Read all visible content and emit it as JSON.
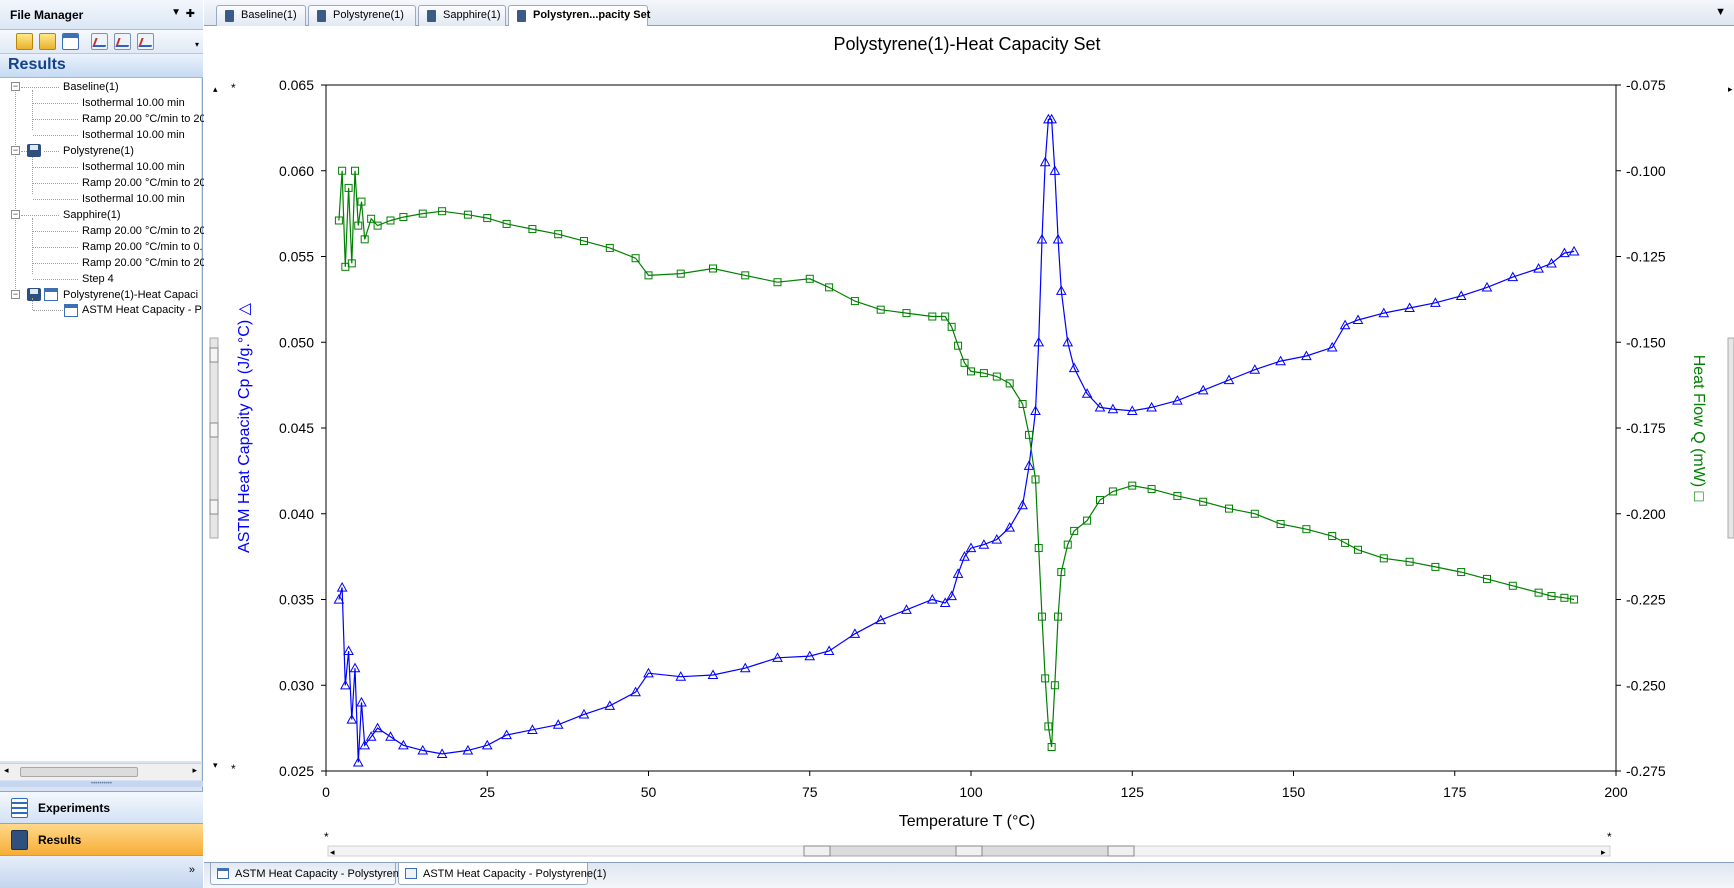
{
  "file_manager": {
    "title": "File Manager",
    "results_header": "Results",
    "tree": [
      {
        "label": "Baseline(1)",
        "children": [
          "Isothermal 10.00 min",
          "Ramp 20.00 °C/min to 20",
          "Isothermal 10.00 min"
        ]
      },
      {
        "label": "Polystyrene(1)",
        "children": [
          "Isothermal 10.00 min",
          "Ramp 20.00 °C/min to 20",
          "Isothermal 10.00 min"
        ]
      },
      {
        "label": "Sapphire(1)",
        "children": [
          "Ramp 20.00 °C/min to 20",
          "Ramp 20.00 °C/min to 0.",
          "Ramp 20.00 °C/min to 20",
          "Step 4"
        ]
      },
      {
        "label": "Polystyrene(1)-Heat Capaci",
        "children": [
          "ASTM Heat Capacity - P"
        ]
      }
    ],
    "nav": {
      "experiments": "Experiments",
      "results": "Results"
    }
  },
  "tabs": [
    "Baseline(1)",
    "Polystyrene(1)",
    "Sapphire(1)",
    "Polystyren...pacity Set"
  ],
  "bottom_tabs": [
    "ASTM Heat Capacity - Polystyrene(1)",
    "ASTM Heat Capacity - Polystyrene(1)"
  ],
  "chart_data": {
    "type": "line",
    "title": "Polystyrene(1)-Heat Capacity Set",
    "xlabel": "Temperature  T (°C)",
    "ylabel": "ASTM Heat Capacity  Cp (J/g.°C) △",
    "y2label": "Heat Flow  Q (mW) □",
    "xlim": [
      0,
      200
    ],
    "ylim": [
      0.025,
      0.065
    ],
    "y2lim": [
      -0.275,
      -0.075
    ],
    "x_ticks": [
      "0",
      "25",
      "50",
      "75",
      "100",
      "125",
      "150",
      "175",
      "200"
    ],
    "y_ticks": [
      "0.025",
      "0.030",
      "0.035",
      "0.040",
      "0.045",
      "0.050",
      "0.055",
      "0.060",
      "0.065"
    ],
    "y2_ticks": [
      "-0.275",
      "-0.250",
      "-0.225",
      "-0.200",
      "-0.175",
      "-0.150",
      "-0.125",
      "-0.100",
      "-0.075"
    ],
    "grid": false,
    "series": [
      {
        "color": "#0000ff",
        "marker": "triangle",
        "axis": "left",
        "points": [
          [
            2,
            0.035
          ],
          [
            2.5,
            0.0357
          ],
          [
            3,
            0.03
          ],
          [
            3.5,
            0.032
          ],
          [
            4,
            0.028
          ],
          [
            4.5,
            0.031
          ],
          [
            5,
            0.0255
          ],
          [
            5.5,
            0.029
          ],
          [
            6,
            0.0265
          ],
          [
            7,
            0.027
          ],
          [
            8,
            0.0275
          ],
          [
            10,
            0.027
          ],
          [
            12,
            0.0265
          ],
          [
            15,
            0.0262
          ],
          [
            18,
            0.026
          ],
          [
            22,
            0.0262
          ],
          [
            25,
            0.0265
          ],
          [
            28,
            0.0271
          ],
          [
            32,
            0.0274
          ],
          [
            36,
            0.0277
          ],
          [
            40,
            0.0283
          ],
          [
            44,
            0.0288
          ],
          [
            48,
            0.0296
          ],
          [
            50,
            0.0307
          ],
          [
            55,
            0.0305
          ],
          [
            60,
            0.0306
          ],
          [
            65,
            0.031
          ],
          [
            70,
            0.0316
          ],
          [
            75,
            0.0317
          ],
          [
            78,
            0.032
          ],
          [
            82,
            0.033
          ],
          [
            86,
            0.0338
          ],
          [
            90,
            0.0344
          ],
          [
            94,
            0.035
          ],
          [
            96,
            0.0348
          ],
          [
            97,
            0.0352
          ],
          [
            98,
            0.0365
          ],
          [
            99,
            0.0375
          ],
          [
            100,
            0.038
          ],
          [
            102,
            0.0382
          ],
          [
            104,
            0.0385
          ],
          [
            106,
            0.0392
          ],
          [
            108,
            0.0405
          ],
          [
            109,
            0.0428
          ],
          [
            110,
            0.046
          ],
          [
            110.5,
            0.05
          ],
          [
            111,
            0.056
          ],
          [
            111.5,
            0.0605
          ],
          [
            112,
            0.063
          ],
          [
            112.5,
            0.063
          ],
          [
            113,
            0.06
          ],
          [
            113.5,
            0.056
          ],
          [
            114,
            0.053
          ],
          [
            115,
            0.05
          ],
          [
            116,
            0.0485
          ],
          [
            118,
            0.047
          ],
          [
            120,
            0.0462
          ],
          [
            122,
            0.0461
          ],
          [
            125,
            0.046
          ],
          [
            128,
            0.0462
          ],
          [
            132,
            0.0466
          ],
          [
            136,
            0.0472
          ],
          [
            140,
            0.0478
          ],
          [
            144,
            0.0484
          ],
          [
            148,
            0.0489
          ],
          [
            152,
            0.0492
          ],
          [
            156,
            0.0497
          ],
          [
            158,
            0.051
          ],
          [
            160,
            0.0513
          ],
          [
            164,
            0.0517
          ],
          [
            168,
            0.052
          ],
          [
            172,
            0.0523
          ],
          [
            176,
            0.0527
          ],
          [
            180,
            0.0532
          ],
          [
            184,
            0.0538
          ],
          [
            188,
            0.0543
          ],
          [
            190,
            0.0546
          ],
          [
            192,
            0.0552
          ],
          [
            193.5,
            0.0553
          ]
        ]
      },
      {
        "color": "#008000",
        "marker": "square",
        "axis": "right",
        "points": [
          [
            2,
            -0.1145
          ],
          [
            2.5,
            -0.1
          ],
          [
            3,
            -0.128
          ],
          [
            3.5,
            -0.105
          ],
          [
            4,
            -0.127
          ],
          [
            4.5,
            -0.1
          ],
          [
            5,
            -0.116
          ],
          [
            5.5,
            -0.109
          ],
          [
            6,
            -0.12
          ],
          [
            7,
            -0.114
          ],
          [
            8,
            -0.116
          ],
          [
            10,
            -0.1145
          ],
          [
            12,
            -0.1135
          ],
          [
            15,
            -0.1125
          ],
          [
            18,
            -0.1118
          ],
          [
            22,
            -0.1128
          ],
          [
            25,
            -0.1138
          ],
          [
            28,
            -0.1155
          ],
          [
            32,
            -0.117
          ],
          [
            36,
            -0.1185
          ],
          [
            40,
            -0.1205
          ],
          [
            44,
            -0.1225
          ],
          [
            48,
            -0.1255
          ],
          [
            50,
            -0.1305
          ],
          [
            55,
            -0.13
          ],
          [
            60,
            -0.1285
          ],
          [
            65,
            -0.1305
          ],
          [
            70,
            -0.1325
          ],
          [
            75,
            -0.1315
          ],
          [
            78,
            -0.134
          ],
          [
            82,
            -0.138
          ],
          [
            86,
            -0.1405
          ],
          [
            90,
            -0.1415
          ],
          [
            94,
            -0.1425
          ],
          [
            96,
            -0.1425
          ],
          [
            97,
            -0.1455
          ],
          [
            98,
            -0.151
          ],
          [
            99,
            -0.156
          ],
          [
            100,
            -0.1585
          ],
          [
            102,
            -0.159
          ],
          [
            104,
            -0.16
          ],
          [
            106,
            -0.162
          ],
          [
            108,
            -0.168
          ],
          [
            109,
            -0.177
          ],
          [
            110,
            -0.19
          ],
          [
            110.5,
            -0.21
          ],
          [
            111,
            -0.23
          ],
          [
            111.5,
            -0.248
          ],
          [
            112,
            -0.262
          ],
          [
            112.5,
            -0.268
          ],
          [
            113,
            -0.25
          ],
          [
            113.5,
            -0.23
          ],
          [
            114,
            -0.217
          ],
          [
            115,
            -0.209
          ],
          [
            116,
            -0.205
          ],
          [
            118,
            -0.202
          ],
          [
            120,
            -0.196
          ],
          [
            122,
            -0.1935
          ],
          [
            125,
            -0.1918
          ],
          [
            128,
            -0.1928
          ],
          [
            132,
            -0.1948
          ],
          [
            136,
            -0.1965
          ],
          [
            140,
            -0.1985
          ],
          [
            144,
            -0.2
          ],
          [
            148,
            -0.203
          ],
          [
            152,
            -0.2045
          ],
          [
            156,
            -0.2065
          ],
          [
            158,
            -0.2085
          ],
          [
            160,
            -0.2105
          ],
          [
            164,
            -0.213
          ],
          [
            168,
            -0.214
          ],
          [
            172,
            -0.2155
          ],
          [
            176,
            -0.217
          ],
          [
            180,
            -0.219
          ],
          [
            184,
            -0.221
          ],
          [
            188,
            -0.223
          ],
          [
            190,
            -0.224
          ],
          [
            192,
            -0.2245
          ],
          [
            193.5,
            -0.225
          ]
        ]
      }
    ]
  }
}
